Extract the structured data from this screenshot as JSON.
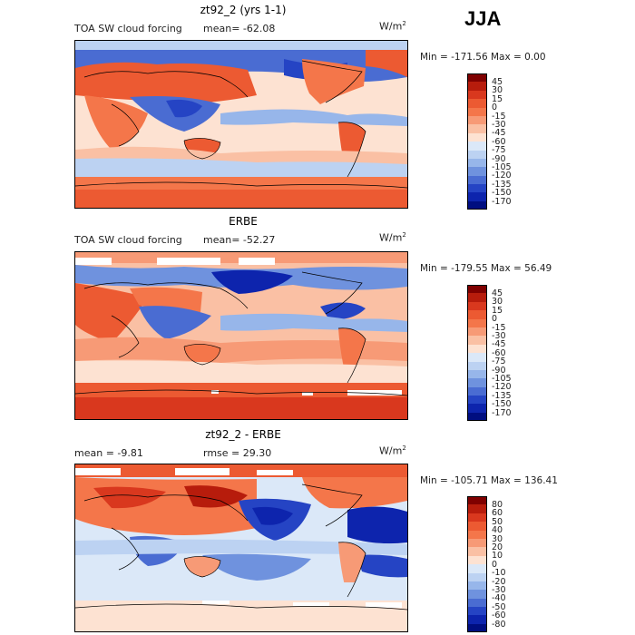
{
  "season": "JJA",
  "panels": [
    {
      "title": "zt92_2 (yrs 1-1)",
      "left_label": "TOA SW cloud forcing",
      "center_label": "mean=  -62.08",
      "units": "W/m",
      "units_sup": "2",
      "stats": "Min = -171.56  Max =    0.00",
      "colorbar": {
        "labels": [
          "45",
          "30",
          "15",
          "0",
          "-15",
          "-30",
          "-45",
          "-60",
          "-75",
          "-90",
          "-105",
          "-120",
          "-135",
          "-150",
          "-170"
        ],
        "colors": [
          "#7f0000",
          "#b71c0c",
          "#d9381e",
          "#ec5a32",
          "#f4764a",
          "#f79a76",
          "#fac0a4",
          "#fde2d2",
          "#dbe8f8",
          "#bcd2f2",
          "#97b6ea",
          "#6f92de",
          "#4a6cd2",
          "#2544c4",
          "#0d24ad",
          "#000e80"
        ]
      }
    },
    {
      "title": "ERBE",
      "left_label": "TOA SW cloud forcing",
      "center_label": "mean=  -52.27",
      "units": "W/m",
      "units_sup": "2",
      "stats": "Min = -179.55  Max =   56.49",
      "colorbar": {
        "labels": [
          "45",
          "30",
          "15",
          "0",
          "-15",
          "-30",
          "-45",
          "-60",
          "-75",
          "-90",
          "-105",
          "-120",
          "-135",
          "-150",
          "-170"
        ],
        "colors": [
          "#7f0000",
          "#b71c0c",
          "#d9381e",
          "#ec5a32",
          "#f4764a",
          "#f79a76",
          "#fac0a4",
          "#fde2d2",
          "#dbe8f8",
          "#bcd2f2",
          "#97b6ea",
          "#6f92de",
          "#4a6cd2",
          "#2544c4",
          "#0d24ad",
          "#000e80"
        ]
      }
    },
    {
      "title": "zt92_2 - ERBE",
      "left_label": "mean =    -9.81",
      "center_label": "rmse =   29.30",
      "units": "W/m",
      "units_sup": "2",
      "stats": "Min = -105.71  Max = 136.41",
      "colorbar": {
        "labels": [
          "80",
          "60",
          "50",
          "40",
          "30",
          "20",
          "10",
          "0",
          "-10",
          "-20",
          "-30",
          "-40",
          "-50",
          "-60",
          "-80"
        ],
        "colors": [
          "#7f0000",
          "#b71c0c",
          "#d9381e",
          "#ec5a32",
          "#f4764a",
          "#f79a76",
          "#fac0a4",
          "#fde2d2",
          "#dbe8f8",
          "#bcd2f2",
          "#97b6ea",
          "#6f92de",
          "#4a6cd2",
          "#2544c4",
          "#0d24ad",
          "#000e80"
        ]
      }
    }
  ],
  "palette": {
    "ocean_blue": "#4a6cd2",
    "light_blue": "#bcd2f2",
    "pale": "#fde2d2",
    "salmon": "#f79a76",
    "orange_red": "#ec5a32",
    "deep_blue": "#0d24ad"
  }
}
